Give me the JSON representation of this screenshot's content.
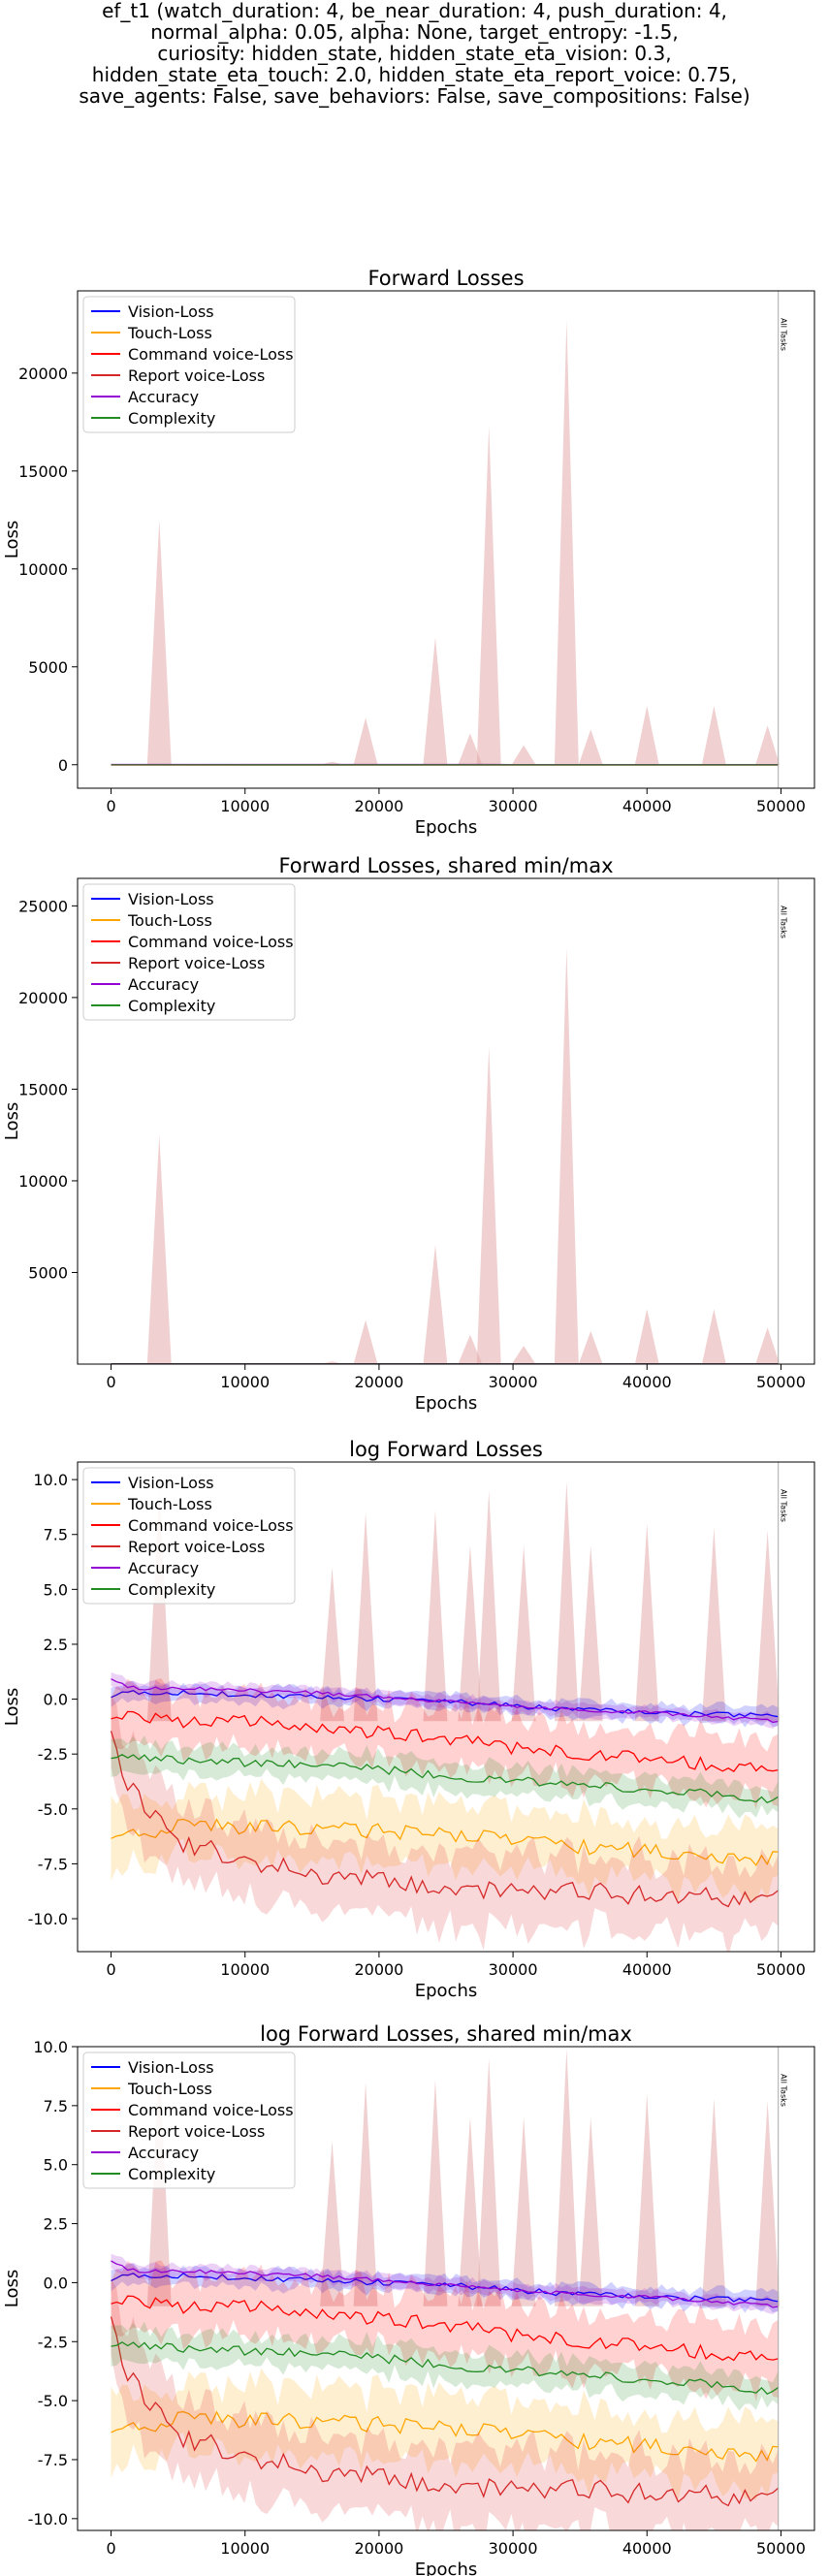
{
  "figure": {
    "title_lines": [
      "ef_t1 (watch_duration: 4, be_near_duration: 4, push_duration: 4,",
      "normal_alpha: 0.05, alpha: None, target_entropy: -1.5,",
      "curiosity: hidden_state, hidden_state_eta_vision: 0.3,",
      "hidden_state_eta_touch: 2.0, hidden_state_eta_report_voice: 0.75,",
      "save_agents: False, save_behaviors: False, save_compositions: False)"
    ]
  },
  "colors": {
    "Vision-Loss": "#0000ff",
    "Touch-Loss": "#ffa500",
    "Command voice-Loss": "#ff0000",
    "Report voice-Loss": "#d62728",
    "Accuracy": "#9400d3",
    "Complexity": "#228b22",
    "spike_fill": "#e3aaaa"
  },
  "chart_data": [
    {
      "type": "line",
      "title": "Forward Losses",
      "xlabel": "Epochs",
      "ylabel": "Loss",
      "xlim": [
        -2500,
        52500
      ],
      "ylim": [
        -1200,
        24200
      ],
      "xticks": [
        0,
        10000,
        20000,
        30000,
        40000,
        50000
      ],
      "yticks": [
        0,
        5000,
        10000,
        15000,
        20000
      ],
      "legend": "top-left",
      "legend_entries": [
        "Vision-Loss",
        "Touch-Loss",
        "Command voice-Loss",
        "Report voice-Loss",
        "Accuracy",
        "Complexity"
      ],
      "vline": {
        "x": 49800,
        "label": "All Tasks"
      },
      "log": false,
      "series": [
        {
          "name": "Vision-Loss",
          "values": [
            1.2,
            1.1,
            1.0,
            0.9,
            0.8,
            0.7
          ]
        },
        {
          "name": "Touch-Loss",
          "values": [
            0.004,
            0.003,
            0.003,
            0.003,
            0.002,
            0.002
          ]
        },
        {
          "name": "Command voice-Loss",
          "values": [
            0.5,
            0.3,
            0.2,
            0.15,
            0.1,
            0.08
          ]
        },
        {
          "name": "Report voice-Loss",
          "values": [
            0.02,
            0.005,
            0.003,
            0.002,
            0.001,
            0.0001
          ]
        },
        {
          "name": "Accuracy",
          "values": [
            2.5,
            1.8,
            1.5,
            1.3,
            1.1,
            0.9
          ]
        },
        {
          "name": "Complexity",
          "values": [
            0.08,
            0.05,
            0.04,
            0.03,
            0.02,
            0.01
          ]
        }
      ],
      "spikes": [
        [
          3600,
          12500
        ],
        [
          16500,
          150
        ],
        [
          19000,
          2400
        ],
        [
          24200,
          6500
        ],
        [
          26800,
          1600
        ],
        [
          28200,
          17300
        ],
        [
          30800,
          1000
        ],
        [
          34000,
          22700
        ],
        [
          35800,
          1800
        ],
        [
          40000,
          3000
        ],
        [
          45000,
          3000
        ],
        [
          49000,
          2000
        ]
      ]
    },
    {
      "type": "line",
      "title": "Forward Losses, shared min/max",
      "xlabel": "Epochs",
      "ylabel": "Loss",
      "xlim": [
        -2500,
        52500
      ],
      "ylim": [
        0,
        26500
      ],
      "xticks": [
        0,
        10000,
        20000,
        30000,
        40000,
        50000
      ],
      "yticks": [
        5000,
        10000,
        15000,
        20000,
        25000
      ],
      "legend": "top-left",
      "legend_entries": [
        "Vision-Loss",
        "Touch-Loss",
        "Command voice-Loss",
        "Report voice-Loss",
        "Accuracy",
        "Complexity"
      ],
      "vline": {
        "x": 49800,
        "label": "All Tasks"
      },
      "log": false,
      "series": [
        {
          "name": "Vision-Loss",
          "values": [
            1.2,
            1.1,
            1.0,
            0.9,
            0.8,
            0.7
          ]
        },
        {
          "name": "Touch-Loss",
          "values": [
            0.004,
            0.003,
            0.003,
            0.003,
            0.002,
            0.002
          ]
        },
        {
          "name": "Command voice-Loss",
          "values": [
            0.5,
            0.3,
            0.2,
            0.15,
            0.1,
            0.08
          ]
        },
        {
          "name": "Report voice-Loss",
          "values": [
            0.02,
            0.005,
            0.003,
            0.002,
            0.001,
            0.0001
          ]
        },
        {
          "name": "Accuracy",
          "values": [
            2.5,
            1.8,
            1.5,
            1.3,
            1.1,
            0.9
          ]
        },
        {
          "name": "Complexity",
          "values": [
            0.08,
            0.05,
            0.04,
            0.03,
            0.02,
            0.01
          ]
        }
      ],
      "spikes": [
        [
          3600,
          12500
        ],
        [
          16500,
          150
        ],
        [
          19000,
          2400
        ],
        [
          24200,
          6500
        ],
        [
          26800,
          1600
        ],
        [
          28200,
          17300
        ],
        [
          30800,
          1000
        ],
        [
          34000,
          22700
        ],
        [
          35800,
          1800
        ],
        [
          40000,
          3000
        ],
        [
          45000,
          3000
        ],
        [
          49000,
          2000
        ]
      ]
    },
    {
      "type": "line",
      "title": "log Forward Losses",
      "xlabel": "Epochs",
      "ylabel": "Loss",
      "xlim": [
        -2500,
        52500
      ],
      "ylim": [
        -11.5,
        10.8
      ],
      "xticks": [
        0,
        10000,
        20000,
        30000,
        40000,
        50000
      ],
      "yticks": [
        -10.0,
        -7.5,
        -5.0,
        -2.5,
        0.0,
        2.5,
        5.0,
        7.5,
        10.0
      ],
      "legend": "top-left",
      "legend_entries": [
        "Vision-Loss",
        "Touch-Loss",
        "Command voice-Loss",
        "Report voice-Loss",
        "Accuracy",
        "Complexity"
      ],
      "vline": {
        "x": 49800,
        "label": "All Tasks"
      },
      "log": true,
      "x": [
        0,
        1000,
        2000,
        3000,
        5000,
        10000,
        15000,
        20000,
        25000,
        30000,
        35000,
        40000,
        45000,
        49800
      ],
      "series": [
        {
          "name": "Vision-Loss",
          "values": [
            0.2,
            0.3,
            0.3,
            0.3,
            0.3,
            0.2,
            0.1,
            0.0,
            -0.1,
            -0.3,
            -0.5,
            -0.6,
            -0.7,
            -0.8
          ]
        },
        {
          "name": "Touch-Loss",
          "values": [
            -6.0,
            -6.2,
            -6.2,
            -6.0,
            -5.8,
            -5.8,
            -5.9,
            -6.0,
            -6.2,
            -6.4,
            -6.7,
            -6.9,
            -7.1,
            -7.3
          ]
        },
        {
          "name": "Command voice-Loss",
          "values": [
            -0.6,
            -0.8,
            -0.8,
            -0.9,
            -1.0,
            -1.0,
            -1.3,
            -1.5,
            -1.8,
            -2.2,
            -2.5,
            -2.7,
            -3.0,
            -3.2
          ]
        },
        {
          "name": "Report voice-Loss",
          "values": [
            -1.0,
            -3.5,
            -4.5,
            -5.2,
            -6.5,
            -7.3,
            -8.0,
            -8.3,
            -8.6,
            -8.7,
            -8.8,
            -8.9,
            -9.0,
            -9.1
          ]
        },
        {
          "name": "Accuracy",
          "values": [
            1.0,
            0.6,
            0.5,
            0.5,
            0.5,
            0.4,
            0.3,
            0.1,
            -0.1,
            -0.3,
            -0.5,
            -0.6,
            -0.8,
            -1.0
          ]
        },
        {
          "name": "Complexity",
          "values": [
            -2.5,
            -2.6,
            -2.7,
            -2.7,
            -2.8,
            -2.9,
            -3.0,
            -3.2,
            -3.5,
            -3.7,
            -3.9,
            -4.1,
            -4.3,
            -4.6
          ]
        }
      ],
      "spikes": [
        [
          3600,
          9.5
        ],
        [
          16500,
          6.0
        ],
        [
          19000,
          8.5
        ],
        [
          24200,
          8.6
        ],
        [
          26800,
          7.0
        ],
        [
          28200,
          9.5
        ],
        [
          30800,
          7.0
        ],
        [
          34000,
          9.9
        ],
        [
          35800,
          7.0
        ],
        [
          40000,
          8.0
        ],
        [
          45000,
          7.8
        ],
        [
          49000,
          7.7
        ]
      ]
    },
    {
      "type": "line",
      "title": "log Forward Losses, shared min/max",
      "xlabel": "Epochs",
      "ylabel": "Loss",
      "xlim": [
        -2500,
        52500
      ],
      "ylim": [
        -10.5,
        10.0
      ],
      "xticks": [
        0,
        10000,
        20000,
        30000,
        40000,
        50000
      ],
      "yticks": [
        -10.0,
        -7.5,
        -5.0,
        -2.5,
        0.0,
        2.5,
        5.0,
        7.5,
        10.0
      ],
      "legend": "top-left",
      "legend_entries": [
        "Vision-Loss",
        "Touch-Loss",
        "Command voice-Loss",
        "Report voice-Loss",
        "Accuracy",
        "Complexity"
      ],
      "vline": {
        "x": 49800,
        "label": "All Tasks"
      },
      "log": true,
      "x": [
        0,
        1000,
        2000,
        3000,
        5000,
        10000,
        15000,
        20000,
        25000,
        30000,
        35000,
        40000,
        45000,
        49800
      ],
      "series": [
        {
          "name": "Vision-Loss",
          "values": [
            0.2,
            0.3,
            0.3,
            0.3,
            0.3,
            0.2,
            0.1,
            0.0,
            -0.1,
            -0.3,
            -0.5,
            -0.6,
            -0.7,
            -0.8
          ]
        },
        {
          "name": "Touch-Loss",
          "values": [
            -6.0,
            -6.2,
            -6.2,
            -6.0,
            -5.8,
            -5.8,
            -5.9,
            -6.0,
            -6.2,
            -6.4,
            -6.7,
            -6.9,
            -7.1,
            -7.3
          ]
        },
        {
          "name": "Command voice-Loss",
          "values": [
            -0.6,
            -0.8,
            -0.8,
            -0.9,
            -1.0,
            -1.0,
            -1.3,
            -1.5,
            -1.8,
            -2.2,
            -2.5,
            -2.7,
            -3.0,
            -3.2
          ]
        },
        {
          "name": "Report voice-Loss",
          "values": [
            -1.0,
            -3.5,
            -4.5,
            -5.2,
            -6.5,
            -7.3,
            -8.0,
            -8.3,
            -8.6,
            -8.7,
            -8.8,
            -8.9,
            -9.0,
            -9.1
          ]
        },
        {
          "name": "Accuracy",
          "values": [
            1.0,
            0.6,
            0.5,
            0.5,
            0.5,
            0.4,
            0.3,
            0.1,
            -0.1,
            -0.3,
            -0.5,
            -0.6,
            -0.8,
            -1.0
          ]
        },
        {
          "name": "Complexity",
          "values": [
            -2.5,
            -2.6,
            -2.7,
            -2.7,
            -2.8,
            -2.9,
            -3.0,
            -3.2,
            -3.5,
            -3.7,
            -3.9,
            -4.1,
            -4.3,
            -4.6
          ]
        }
      ],
      "spikes": [
        [
          3600,
          9.5
        ],
        [
          16500,
          6.0
        ],
        [
          19000,
          8.5
        ],
        [
          24200,
          8.6
        ],
        [
          26800,
          7.0
        ],
        [
          28200,
          9.5
        ],
        [
          30800,
          7.0
        ],
        [
          34000,
          9.9
        ],
        [
          35800,
          7.0
        ],
        [
          40000,
          8.0
        ],
        [
          45000,
          7.8
        ],
        [
          49000,
          7.7
        ]
      ]
    }
  ]
}
